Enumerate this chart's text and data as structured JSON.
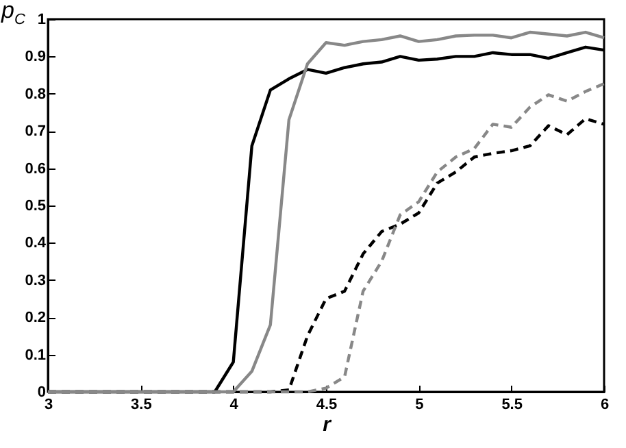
{
  "chart_data": {
    "type": "line",
    "xlabel": "r",
    "ylabel": "p$_{C}$",
    "x": [
      3,
      3.1,
      3.2,
      3.3,
      3.4,
      3.5,
      3.6,
      3.7,
      3.8,
      3.9,
      4,
      4.1,
      4.2,
      4.3,
      4.4,
      4.5,
      4.6,
      4.7,
      4.8,
      4.9,
      5,
      5.1,
      5.2,
      5.3,
      5.4,
      5.5,
      5.6,
      5.7,
      5.8,
      5.9,
      6
    ],
    "series": [
      {
        "color": "#000000",
        "line_style": "solid",
        "values": [
          0,
          0,
          0,
          0,
          0,
          0,
          0,
          0,
          0,
          0,
          0.08,
          0.66,
          0.81,
          0.84,
          0.865,
          0.855,
          0.87,
          0.88,
          0.885,
          0.9,
          0.89,
          0.893,
          0.9,
          0.9,
          0.91,
          0.905,
          0.905,
          0.895,
          0.91,
          0.925,
          0.917
        ]
      },
      {
        "color": "#888888",
        "line_style": "solid",
        "values": [
          0,
          0,
          0,
          0,
          0,
          0,
          0,
          0,
          0,
          0,
          0,
          0.055,
          0.18,
          0.73,
          0.88,
          0.937,
          0.93,
          0.94,
          0.945,
          0.955,
          0.94,
          0.945,
          0.955,
          0.957,
          0.957,
          0.95,
          0.965,
          0.96,
          0.955,
          0.965,
          0.95
        ]
      },
      {
        "color": "#000000",
        "line_style": "dashed",
        "values": [
          0,
          0,
          0,
          0,
          0,
          0,
          0,
          0,
          0,
          0,
          0,
          0,
          0,
          0.005,
          0.15,
          0.25,
          0.27,
          0.37,
          0.43,
          0.45,
          0.48,
          0.56,
          0.59,
          0.63,
          0.64,
          0.647,
          0.66,
          0.714,
          0.69,
          0.733,
          0.718
        ]
      },
      {
        "color": "#888888",
        "line_style": "dashed",
        "values": [
          0,
          0,
          0,
          0,
          0,
          0,
          0,
          0,
          0,
          0,
          0,
          0,
          0,
          0,
          0,
          0.01,
          0.04,
          0.27,
          0.35,
          0.475,
          0.51,
          0.59,
          0.63,
          0.653,
          0.718,
          0.71,
          0.764,
          0.797,
          0.78,
          0.806,
          0.827
        ]
      }
    ],
    "xlim": [
      3,
      6
    ],
    "xticks": [
      3,
      3.5,
      4,
      4.5,
      5,
      5.5,
      6
    ],
    "ylim": [
      0,
      1
    ],
    "yticks": [
      0,
      0.1,
      0.2,
      0.3,
      0.4,
      0.5,
      0.6,
      0.7,
      0.8,
      0.9,
      1
    ],
    "grid": false
  }
}
